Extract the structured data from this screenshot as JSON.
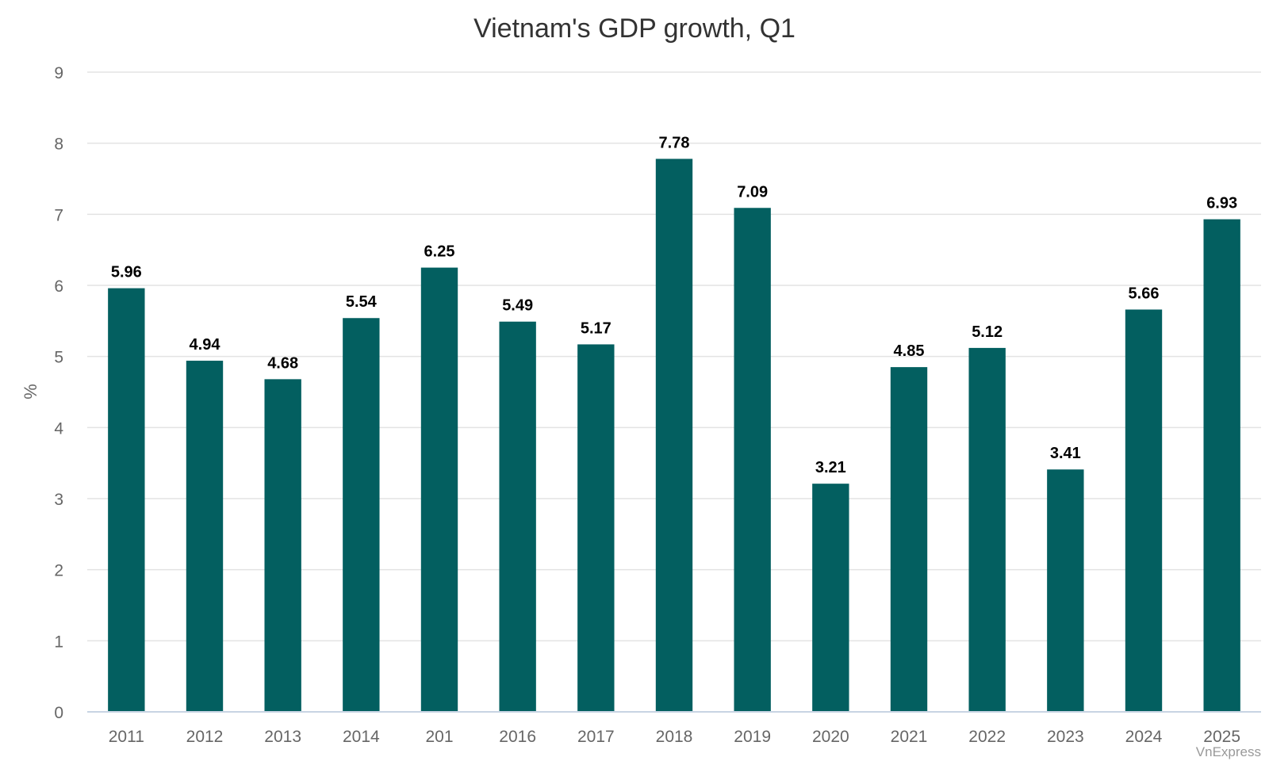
{
  "chart_data": {
    "type": "bar",
    "title": "Vietnam's GDP growth, Q1",
    "xlabel": "",
    "ylabel": "%",
    "categories": [
      "2011",
      "2012",
      "2013",
      "2014",
      "201",
      "2016",
      "2017",
      "2018",
      "2019",
      "2020",
      "2021",
      "2022",
      "2023",
      "2024",
      "2025"
    ],
    "values": [
      5.96,
      4.94,
      4.68,
      5.54,
      6.25,
      5.49,
      5.17,
      7.78,
      7.09,
      3.21,
      4.85,
      5.12,
      3.41,
      5.66,
      6.93
    ],
    "value_labels": [
      "5.96",
      "4.94",
      "4.68",
      "5.54",
      "6.25",
      "5.49",
      "5.17",
      "7.78",
      "7.09",
      "3.21",
      "4.85",
      "5.12",
      "3.41",
      "5.66",
      "6.93"
    ],
    "yticks": [
      "0",
      "1",
      "2",
      "3",
      "4",
      "5",
      "6",
      "7",
      "8",
      "9"
    ],
    "ylim": [
      0,
      9
    ],
    "grid": true,
    "legend": "none",
    "bar_color": "#035f60"
  },
  "credit": "VnExpress"
}
